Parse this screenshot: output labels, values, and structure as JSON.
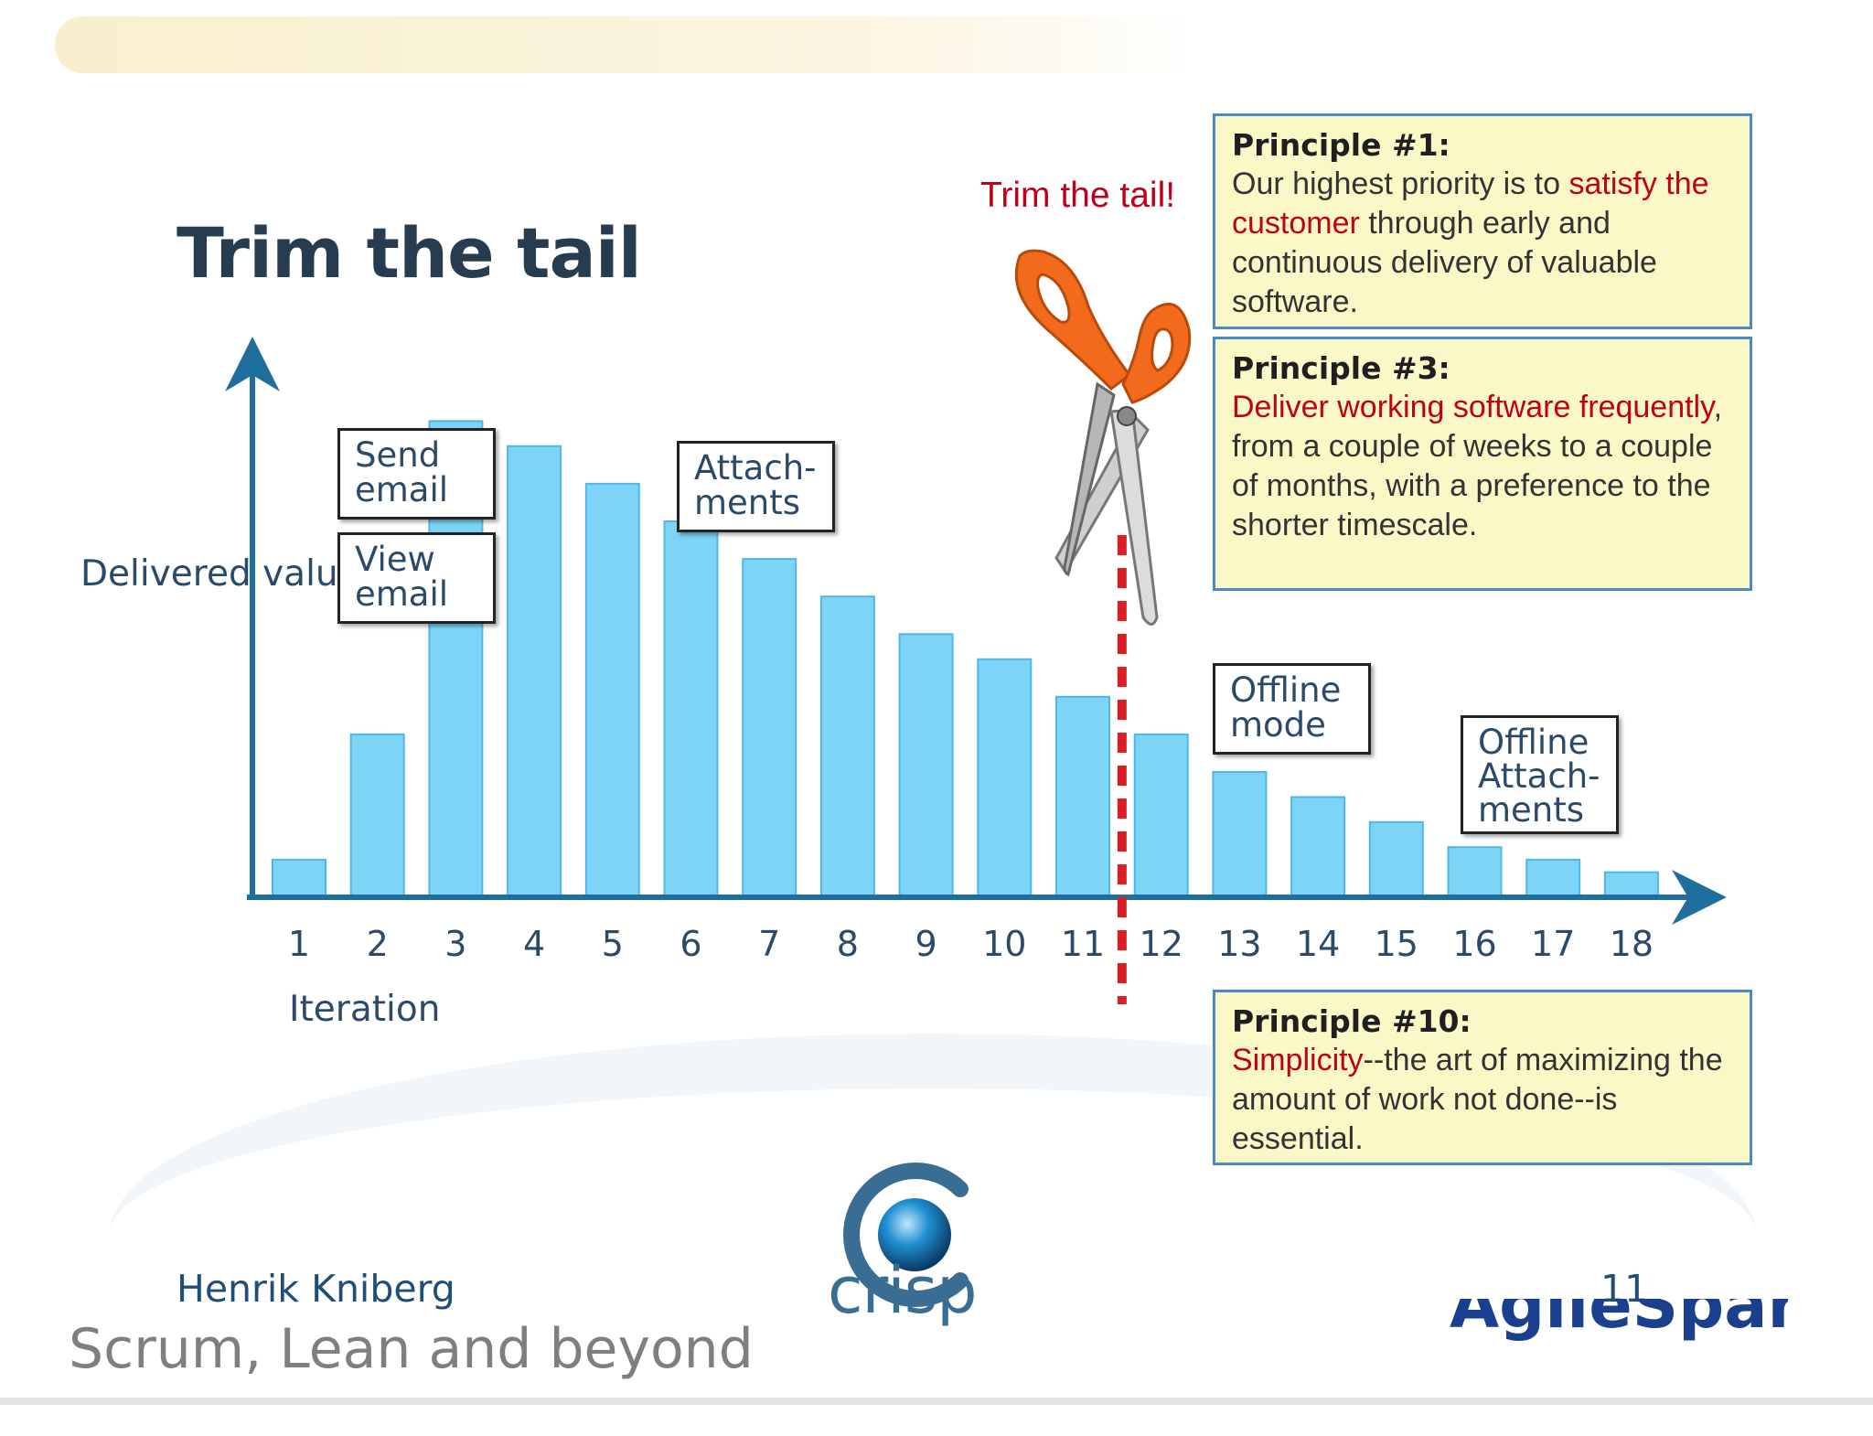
{
  "slide": {
    "title": "Trim the tail",
    "author": "Henrik Kniberg",
    "page_number": "11",
    "footer_text": "Scrum, Lean and beyond",
    "footer_logo_text": "AgileSparks",
    "logo_text": "crisp"
  },
  "chart_data": {
    "type": "bar",
    "title": "",
    "xlabel": "Iteration",
    "ylabel": "Delivered value",
    "categories": [
      "1",
      "2",
      "3",
      "4",
      "5",
      "6",
      "7",
      "8",
      "9",
      "10",
      "11",
      "12",
      "13",
      "14",
      "15",
      "16",
      "17",
      "18"
    ],
    "values": [
      3,
      13,
      38,
      36,
      33,
      30,
      27,
      24,
      21,
      19,
      16,
      13,
      10,
      8,
      6,
      4,
      3,
      2
    ],
    "ylim": [
      0,
      40
    ],
    "bar_color": "#7dd4f7",
    "axis_color": "#1f6f9e",
    "cut_line_after": "11",
    "cut_line_color": "#d81f26",
    "cut_label": "Trim the tail!",
    "grid": false
  },
  "features": [
    {
      "label": "Send\nemail",
      "iteration": "2"
    },
    {
      "label": "View\nemail",
      "iteration": "2"
    },
    {
      "label": "Attach-\nments",
      "iteration": "6"
    },
    {
      "label": "Offline\nmode",
      "iteration": "13"
    },
    {
      "label": "Offline\nAttach-\nments",
      "iteration": "16"
    }
  ],
  "principles": [
    {
      "title": "Principle #1:",
      "parts": [
        {
          "text": "Our highest priority is to ",
          "highlight": false
        },
        {
          "text": "satisfy the customer",
          "highlight": true
        },
        {
          "text": " through early and continuous delivery of valuable software.",
          "highlight": false
        }
      ]
    },
    {
      "title": "Principle #3:",
      "parts": [
        {
          "text": "Deliver working software frequently",
          "highlight": true
        },
        {
          "text": ", from a couple of weeks to a couple of months, with a preference to the shorter timescale.",
          "highlight": false
        }
      ]
    },
    {
      "title": "Principle #10:",
      "parts": [
        {
          "text": "Simplicity",
          "highlight": true
        },
        {
          "text": "--the art of maximizing the amount of work not done--is essential.",
          "highlight": false
        }
      ]
    }
  ],
  "colors": {
    "title": "#283c4f",
    "highlight": "#c0001b",
    "principle_bg": "#fbf8c8",
    "principle_border": "#4a8bc7",
    "scissors_handle": "#f26a1b"
  },
  "icons": [
    "scissors-icon",
    "crisp-logo-icon"
  ]
}
